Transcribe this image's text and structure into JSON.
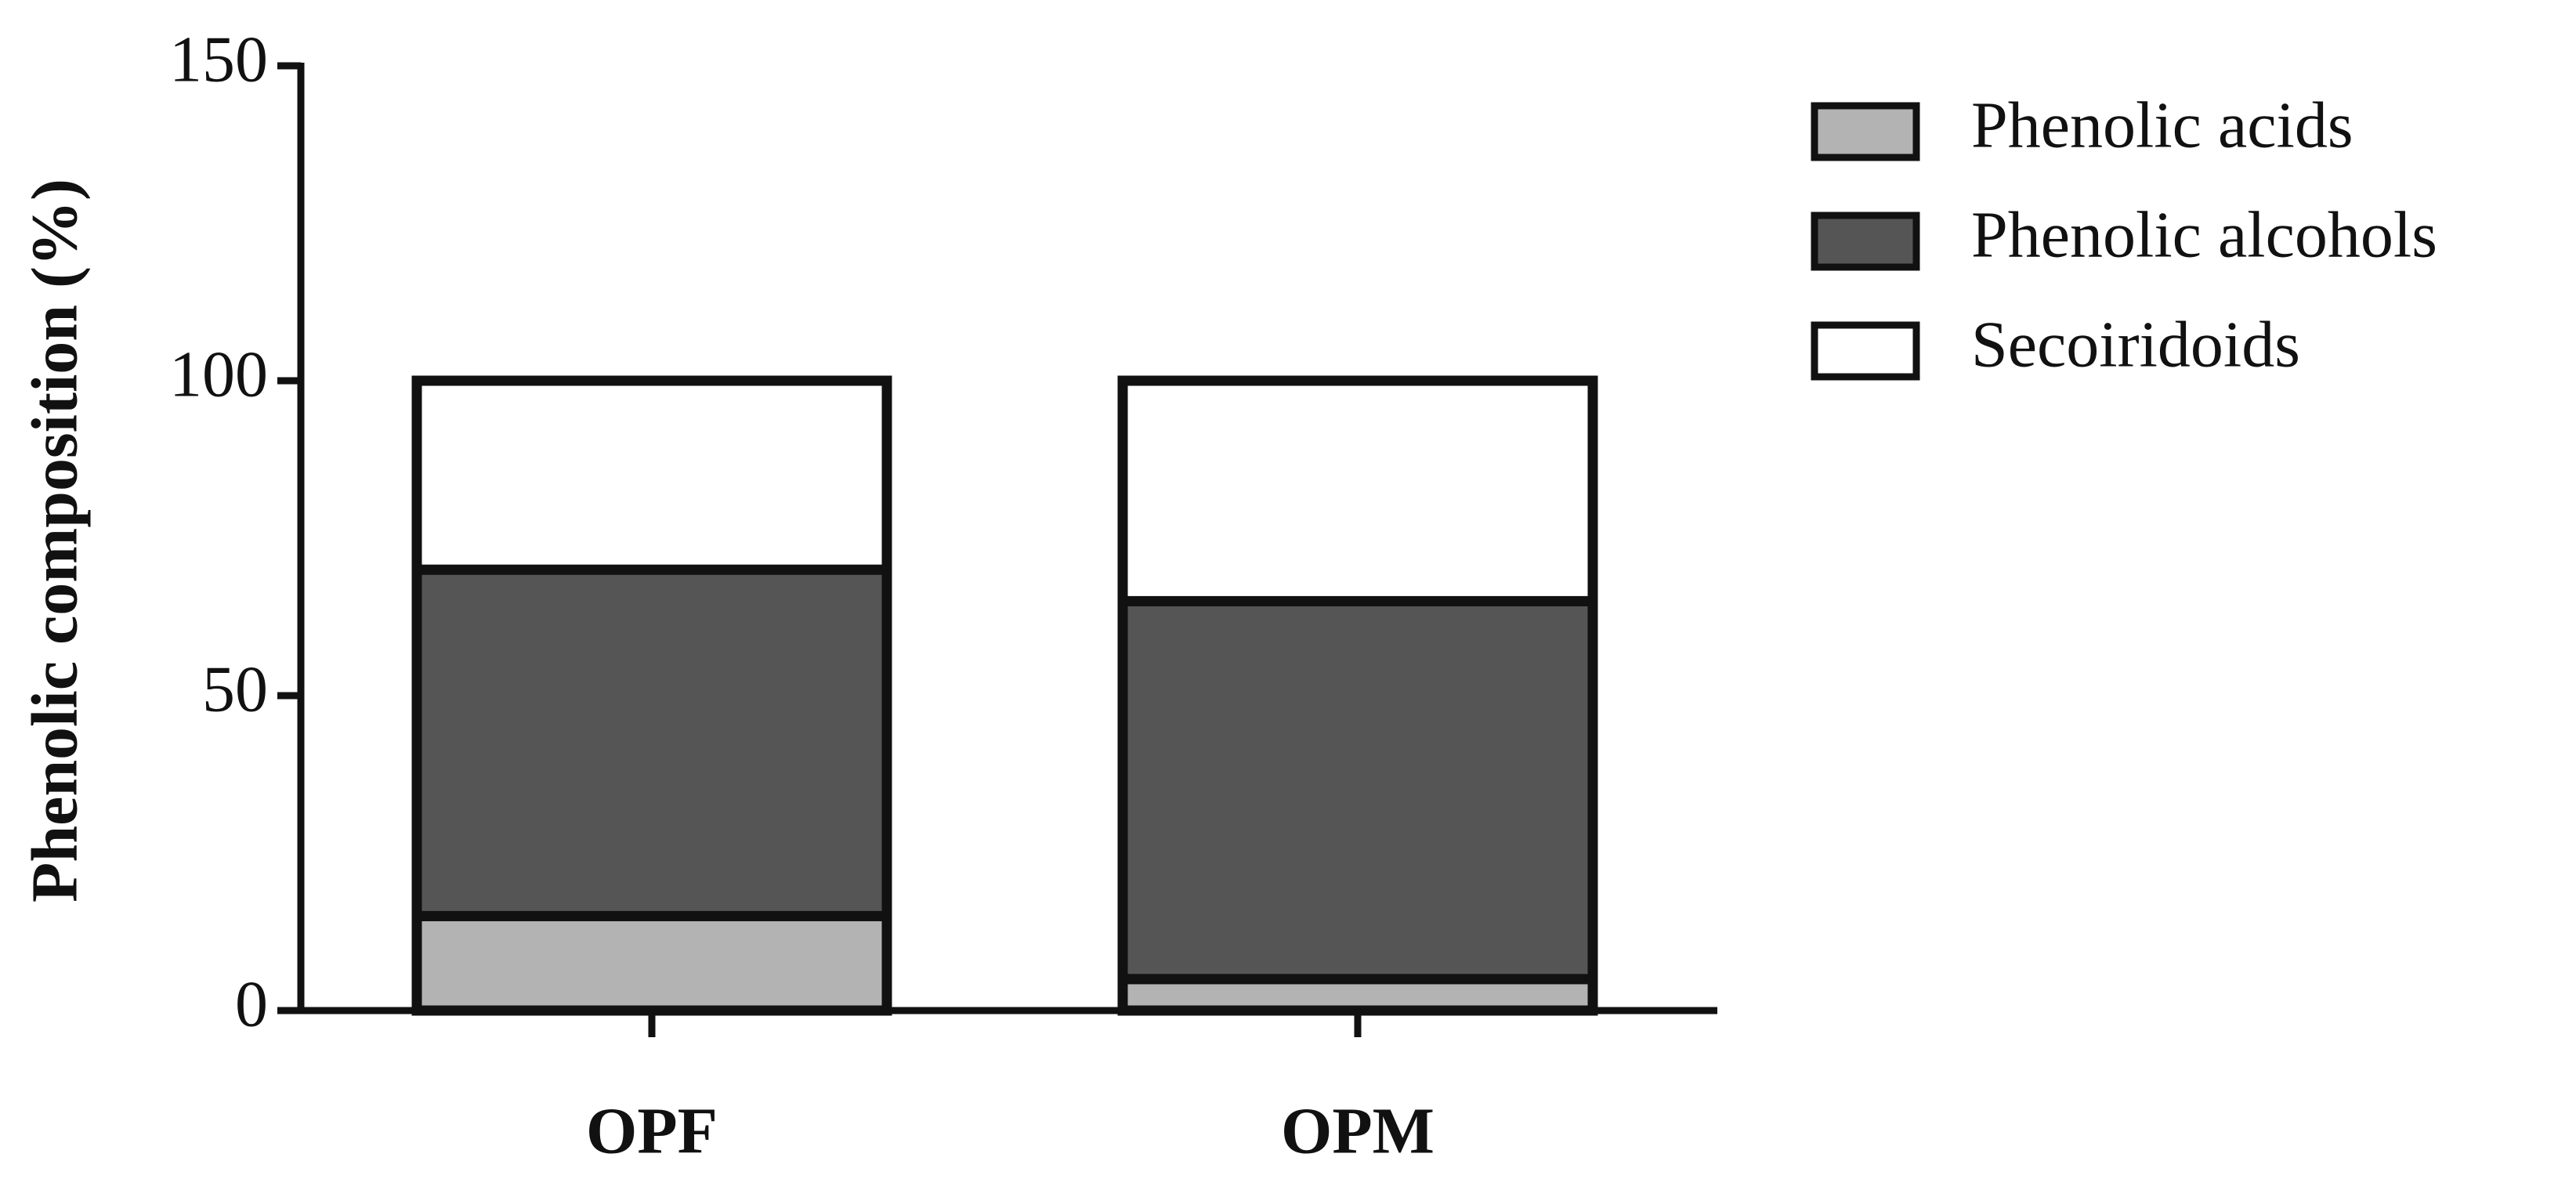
{
  "chart_data": {
    "type": "stacked_bar",
    "y_label": "Phenolic composition (%)",
    "categories": [
      "OPF",
      "OPM"
    ],
    "series": [
      {
        "name": "Phenolic acids",
        "color": "#b3b3b3",
        "values": [
          15,
          5
        ]
      },
      {
        "name": "Phenolic alcohols",
        "color": "#555555",
        "values": [
          55,
          60
        ]
      },
      {
        "name": "Secoiridoids",
        "color": "#ffffff",
        "values": [
          30,
          35
        ]
      }
    ],
    "ylim": [
      0,
      150
    ],
    "yticks": [
      0,
      50,
      100,
      150
    ],
    "grid": false,
    "legend": "right"
  }
}
